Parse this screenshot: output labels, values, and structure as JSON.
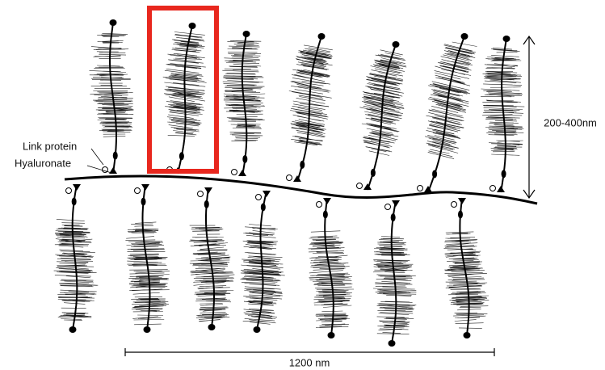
{
  "labels": {
    "link_protein": "Link protein",
    "hyaluronate": "Hyaluronate",
    "height": "200-400nm",
    "length": "1200 nm"
  }
}
